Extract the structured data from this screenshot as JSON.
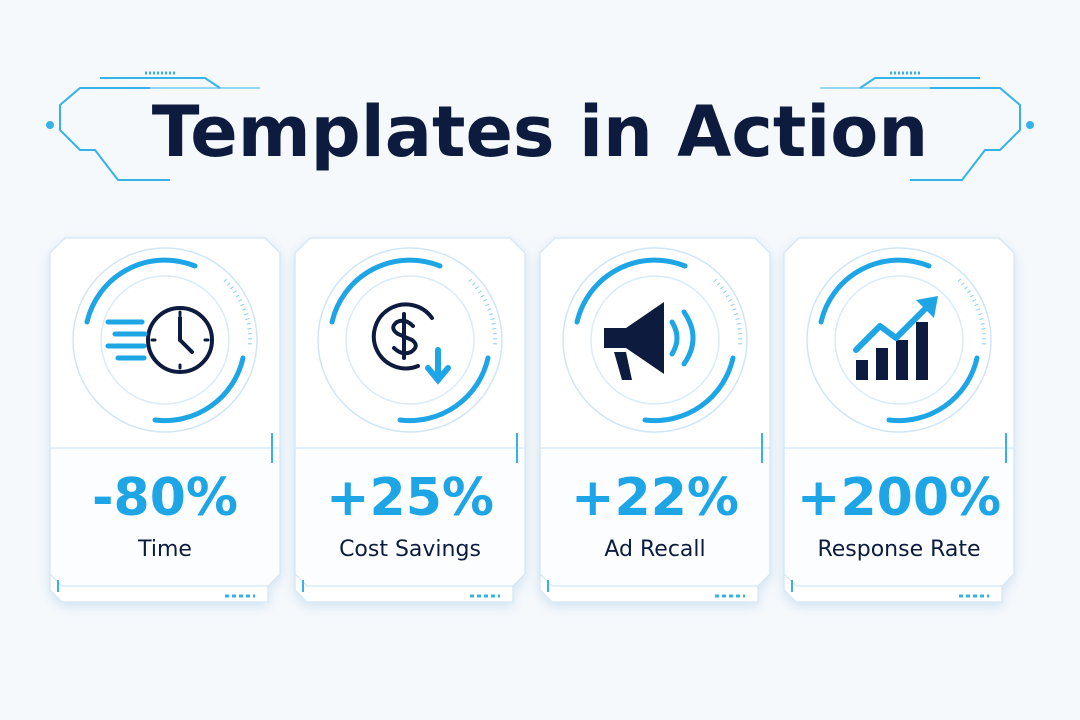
{
  "title": "Templates in Action",
  "cards": [
    {
      "value": "-80%",
      "label": "Time"
    },
    {
      "value": "+25%",
      "label": "Cost Savings"
    },
    {
      "value": "+22%",
      "label": "Ad Recall"
    },
    {
      "value": "+200%",
      "label": "Response Rate"
    }
  ]
}
